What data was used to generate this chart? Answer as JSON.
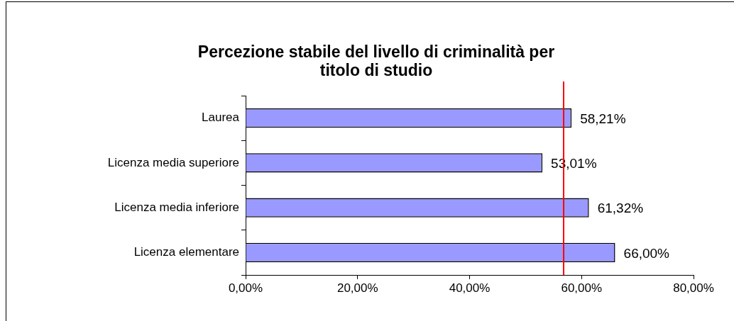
{
  "chart_data": {
    "type": "bar",
    "orientation": "horizontal",
    "title": "Percezione stabile del livello di criminalità per titolo di studio",
    "categories": [
      "Laurea",
      "Licenza media superiore",
      "Licenza media inferiore",
      "Licenza elementare"
    ],
    "values": [
      58.21,
      53.01,
      61.32,
      66.0
    ],
    "value_labels": [
      "58,21%",
      "53,01%",
      "61,32%",
      "66,00%"
    ],
    "color": "#9999ff",
    "xlim": [
      0,
      80
    ],
    "xticks": [
      {
        "value": 0,
        "label": "0,00%"
      },
      {
        "value": 20,
        "label": "20,00%"
      },
      {
        "value": 40,
        "label": "40,00%"
      },
      {
        "value": 60,
        "label": "60,00%"
      },
      {
        "value": 80,
        "label": "80,00%"
      }
    ],
    "ref_lines": [
      {
        "axis": "x",
        "value": 56.8,
        "color": "#ff0000"
      }
    ],
    "grid": false,
    "legend": false
  }
}
